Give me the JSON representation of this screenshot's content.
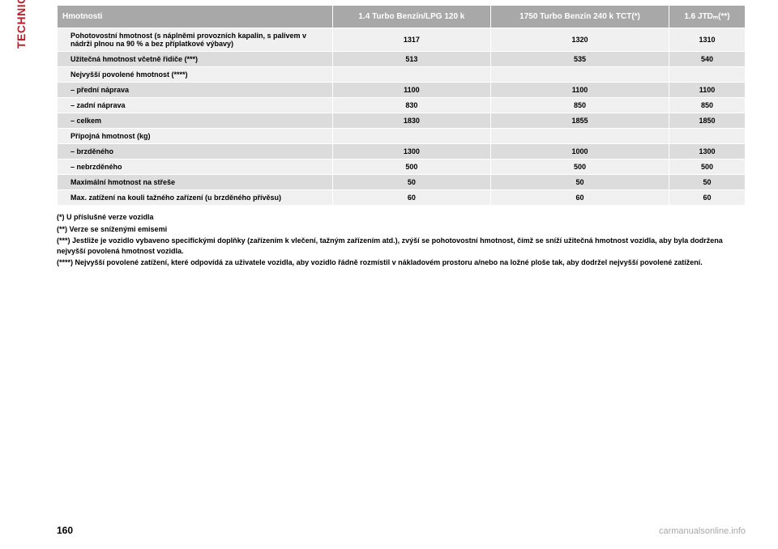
{
  "sidebar": {
    "label": "TECHNICKÉ ÚDAJE"
  },
  "table": {
    "headers": {
      "col0": "Hmotnosti",
      "col1": "1.4 Turbo Benzín/LPG 120 k",
      "col2": "1750 Turbo Benzín 240 k TCT(*)",
      "col3": "1.6 JTDₘ(**)"
    },
    "rows": [
      {
        "label": "Pohotovostní hmotnost (s náplněmi provozních kapalin, s palivem v nádrži plnou na 90 % a bez příplatkové výbavy)",
        "c1": "1317",
        "c2": "1320",
        "c3": "1310"
      },
      {
        "label": "Užitečná hmotnost včetně řidiče (***)",
        "c1": "513",
        "c2": "535",
        "c3": "540"
      },
      {
        "label": "Nejvyšší povolené hmotnost (****)",
        "c1": "",
        "c2": "",
        "c3": ""
      },
      {
        "label": "– přední náprava",
        "c1": "1100",
        "c2": "1100",
        "c3": "1100"
      },
      {
        "label": "– zadní náprava",
        "c1": "830",
        "c2": "850",
        "c3": "850"
      },
      {
        "label": "– celkem",
        "c1": "1830",
        "c2": "1855",
        "c3": "1850"
      },
      {
        "label": "Přípojná hmotnost (kg)",
        "c1": "",
        "c2": "",
        "c3": ""
      },
      {
        "label": "– brzděného",
        "c1": "1300",
        "c2": "1000",
        "c3": "1300"
      },
      {
        "label": "– nebrzděného",
        "c1": "500",
        "c2": "500",
        "c3": "500"
      },
      {
        "label": "Maximální hmotnost na střeše",
        "c1": "50",
        "c2": "50",
        "c3": "50"
      },
      {
        "label": "Max. zatížení na kouli tažného zařízení (u brzděného přívěsu)",
        "c1": "60",
        "c2": "60",
        "c3": "60"
      }
    ]
  },
  "footnotes": {
    "f1": "(*) U příslušné verze vozidla",
    "f2": "(**) Verze se sníženými emisemi",
    "f3": "(***) Jestliže je vozidlo vybaveno specifickými doplňky (zařízením k vlečení, tažným zařízením atd.), zvýší se pohotovostní hmotnost, čímž se sníží užitečná hmotnost vozidla, aby byla dodržena nejvyšší povolená hmotnost vozidla.",
    "f4": "(****) Nejvyšší povolené zatížení, které odpovídá za uživatele vozidla, aby vozidlo řádně rozmístil v nákladovém prostoru a/nebo na ložné ploše tak, aby dodržel nejvyšší povolené zatížení."
  },
  "page": {
    "number": "160"
  },
  "watermark": {
    "text": "carmanualsonline.info"
  },
  "colors": {
    "accent": "#b8232f",
    "header_bg": "#a8a8a8",
    "row_light": "#f0f0f0",
    "row_dark": "#dcdcdc"
  }
}
